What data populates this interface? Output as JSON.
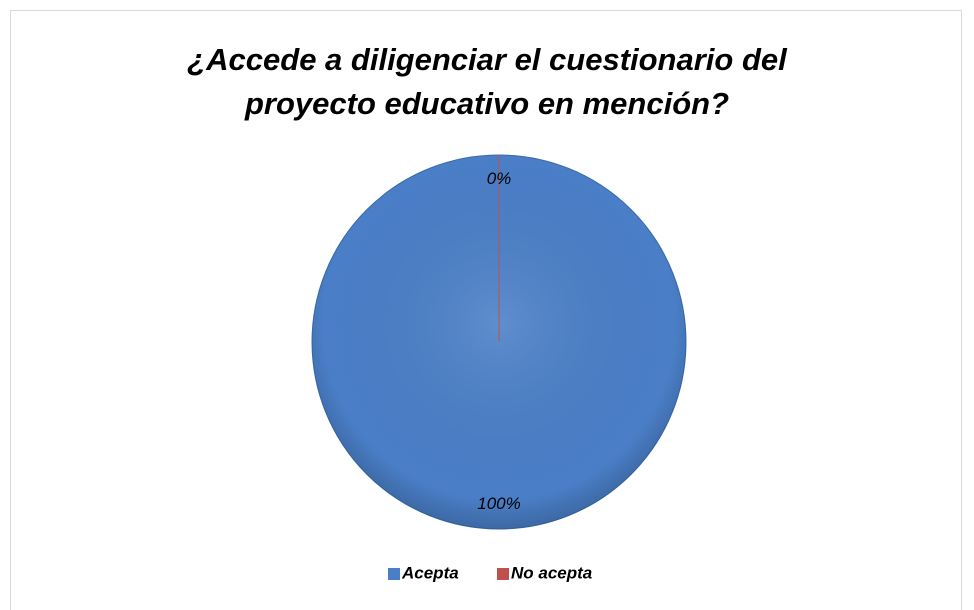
{
  "chart_data": {
    "type": "pie",
    "title": "¿Accede a diligenciar el cuestionario del proyecto educativo en mención?",
    "categories": [
      "Acepta",
      "No acepta"
    ],
    "values": [
      100,
      0
    ],
    "value_labels": [
      "100%",
      "0%"
    ],
    "colors": [
      "#4a7fc8",
      "#c0504d"
    ],
    "legend": "bottom"
  }
}
